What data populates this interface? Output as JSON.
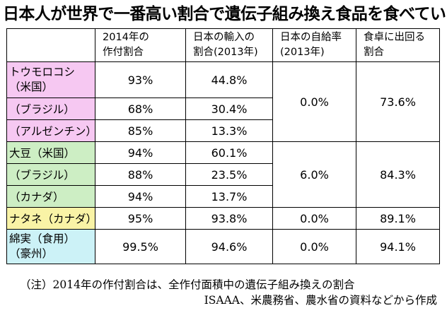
{
  "title": "日本人が世界で一番高い割合で遺伝子組み換え食品を食べている",
  "table": {
    "headers": {
      "crop": "",
      "planting_share": [
        "2014年の",
        "作付割合"
      ],
      "import_share": [
        "日本の輸入の",
        "割合(2013年)"
      ],
      "self_sufficiency": [
        "日本の自給率",
        "(2013年)"
      ],
      "table_share": [
        "食卓に出回る",
        "割合"
      ]
    },
    "rows": {
      "corn_us": {
        "label": [
          "トウモロコシ",
          "（米国）"
        ],
        "planting": "93%",
        "import": "44.8%"
      },
      "corn_brazil": {
        "label": "（ブラジル）",
        "planting": "68%",
        "import": "30.4%"
      },
      "corn_argentina": {
        "label": "（アルゼンチン）",
        "planting": "85%",
        "import": "13.3%"
      },
      "soy_us": {
        "label": "大豆（米国）",
        "planting": "94%",
        "import": "60.1%"
      },
      "soy_brazil": {
        "label": "（ブラジル）",
        "planting": "88%",
        "import": "23.5%"
      },
      "soy_canada": {
        "label": "（カナダ）",
        "planting": "94%",
        "import": "13.7%"
      },
      "rapeseed": {
        "label": "ナタネ（カナダ）",
        "planting": "95%",
        "import": "93.8%"
      },
      "cotton": {
        "label": [
          "綿実（食用）",
          "（豪州）"
        ],
        "planting": "99.5%",
        "import": "94.6%"
      }
    },
    "groups": {
      "corn": {
        "self_sufficiency": "0.0%",
        "table_share": "73.6%"
      },
      "soy": {
        "self_sufficiency": "6.0%",
        "table_share": "84.3%"
      },
      "rapeseed": {
        "self_sufficiency": "0.0%",
        "table_share": "89.1%"
      },
      "cotton": {
        "self_sufficiency": "0.0%",
        "table_share": "94.1%"
      }
    }
  },
  "notes": {
    "note1": "（注）2014年の作付割合は、全作付面積中の遺伝子組み換えの割合",
    "source": "ISAAA、米農務省、農水省の資料などから作成"
  },
  "colors": {
    "corn_bg": "#f6c8f2",
    "soy_bg": "#cdeec4",
    "rapeseed_bg": "#f9f3a6",
    "cotton_bg": "#ccf2f7"
  }
}
